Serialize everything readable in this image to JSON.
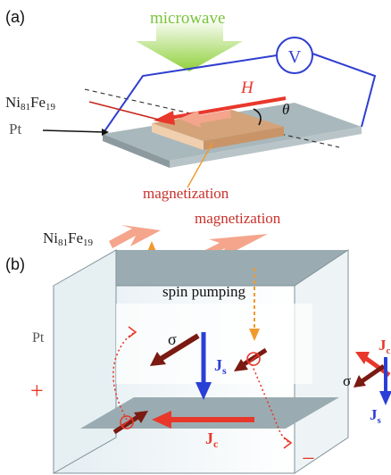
{
  "panel_a": {
    "label": "(a)",
    "microwave": "microwave",
    "voltmeter": "V",
    "field": "H",
    "angle": "θ",
    "ferromagnet": "Ni",
    "ferromagnet_sub1": "81",
    "ferromagnet_mid": "Fe",
    "ferromagnet_sub2": "19",
    "metal": "Pt",
    "magnetization": "magnetization"
  },
  "panel_b": {
    "label": "(b)",
    "magnetization": "magnetization",
    "ferromagnet": "Ni",
    "ferromagnet_sub1": "81",
    "ferromagnet_mid": "Fe",
    "ferromagnet_sub2": "19",
    "spin_pumping": "spin pumping",
    "metal": "Pt",
    "sigma": "σ",
    "js": "J",
    "js_sub": "s",
    "jc": "J",
    "jc_sub": "c",
    "plus": "+",
    "minus": "−"
  },
  "side": {
    "jc": "J",
    "jc_sub": "c",
    "sigma": "σ",
    "js": "J",
    "js_sub": "s"
  },
  "colors": {
    "red": "#e8382b",
    "dark_red": "#7a1a12",
    "salmon": "#f4a58c",
    "blue": "#2a3fd6",
    "wire": "#2f3fd0",
    "plate": "#a9b8bc",
    "ferro": "#d4a37a",
    "orange": "#f09a2c",
    "green": "#8fd03a"
  }
}
